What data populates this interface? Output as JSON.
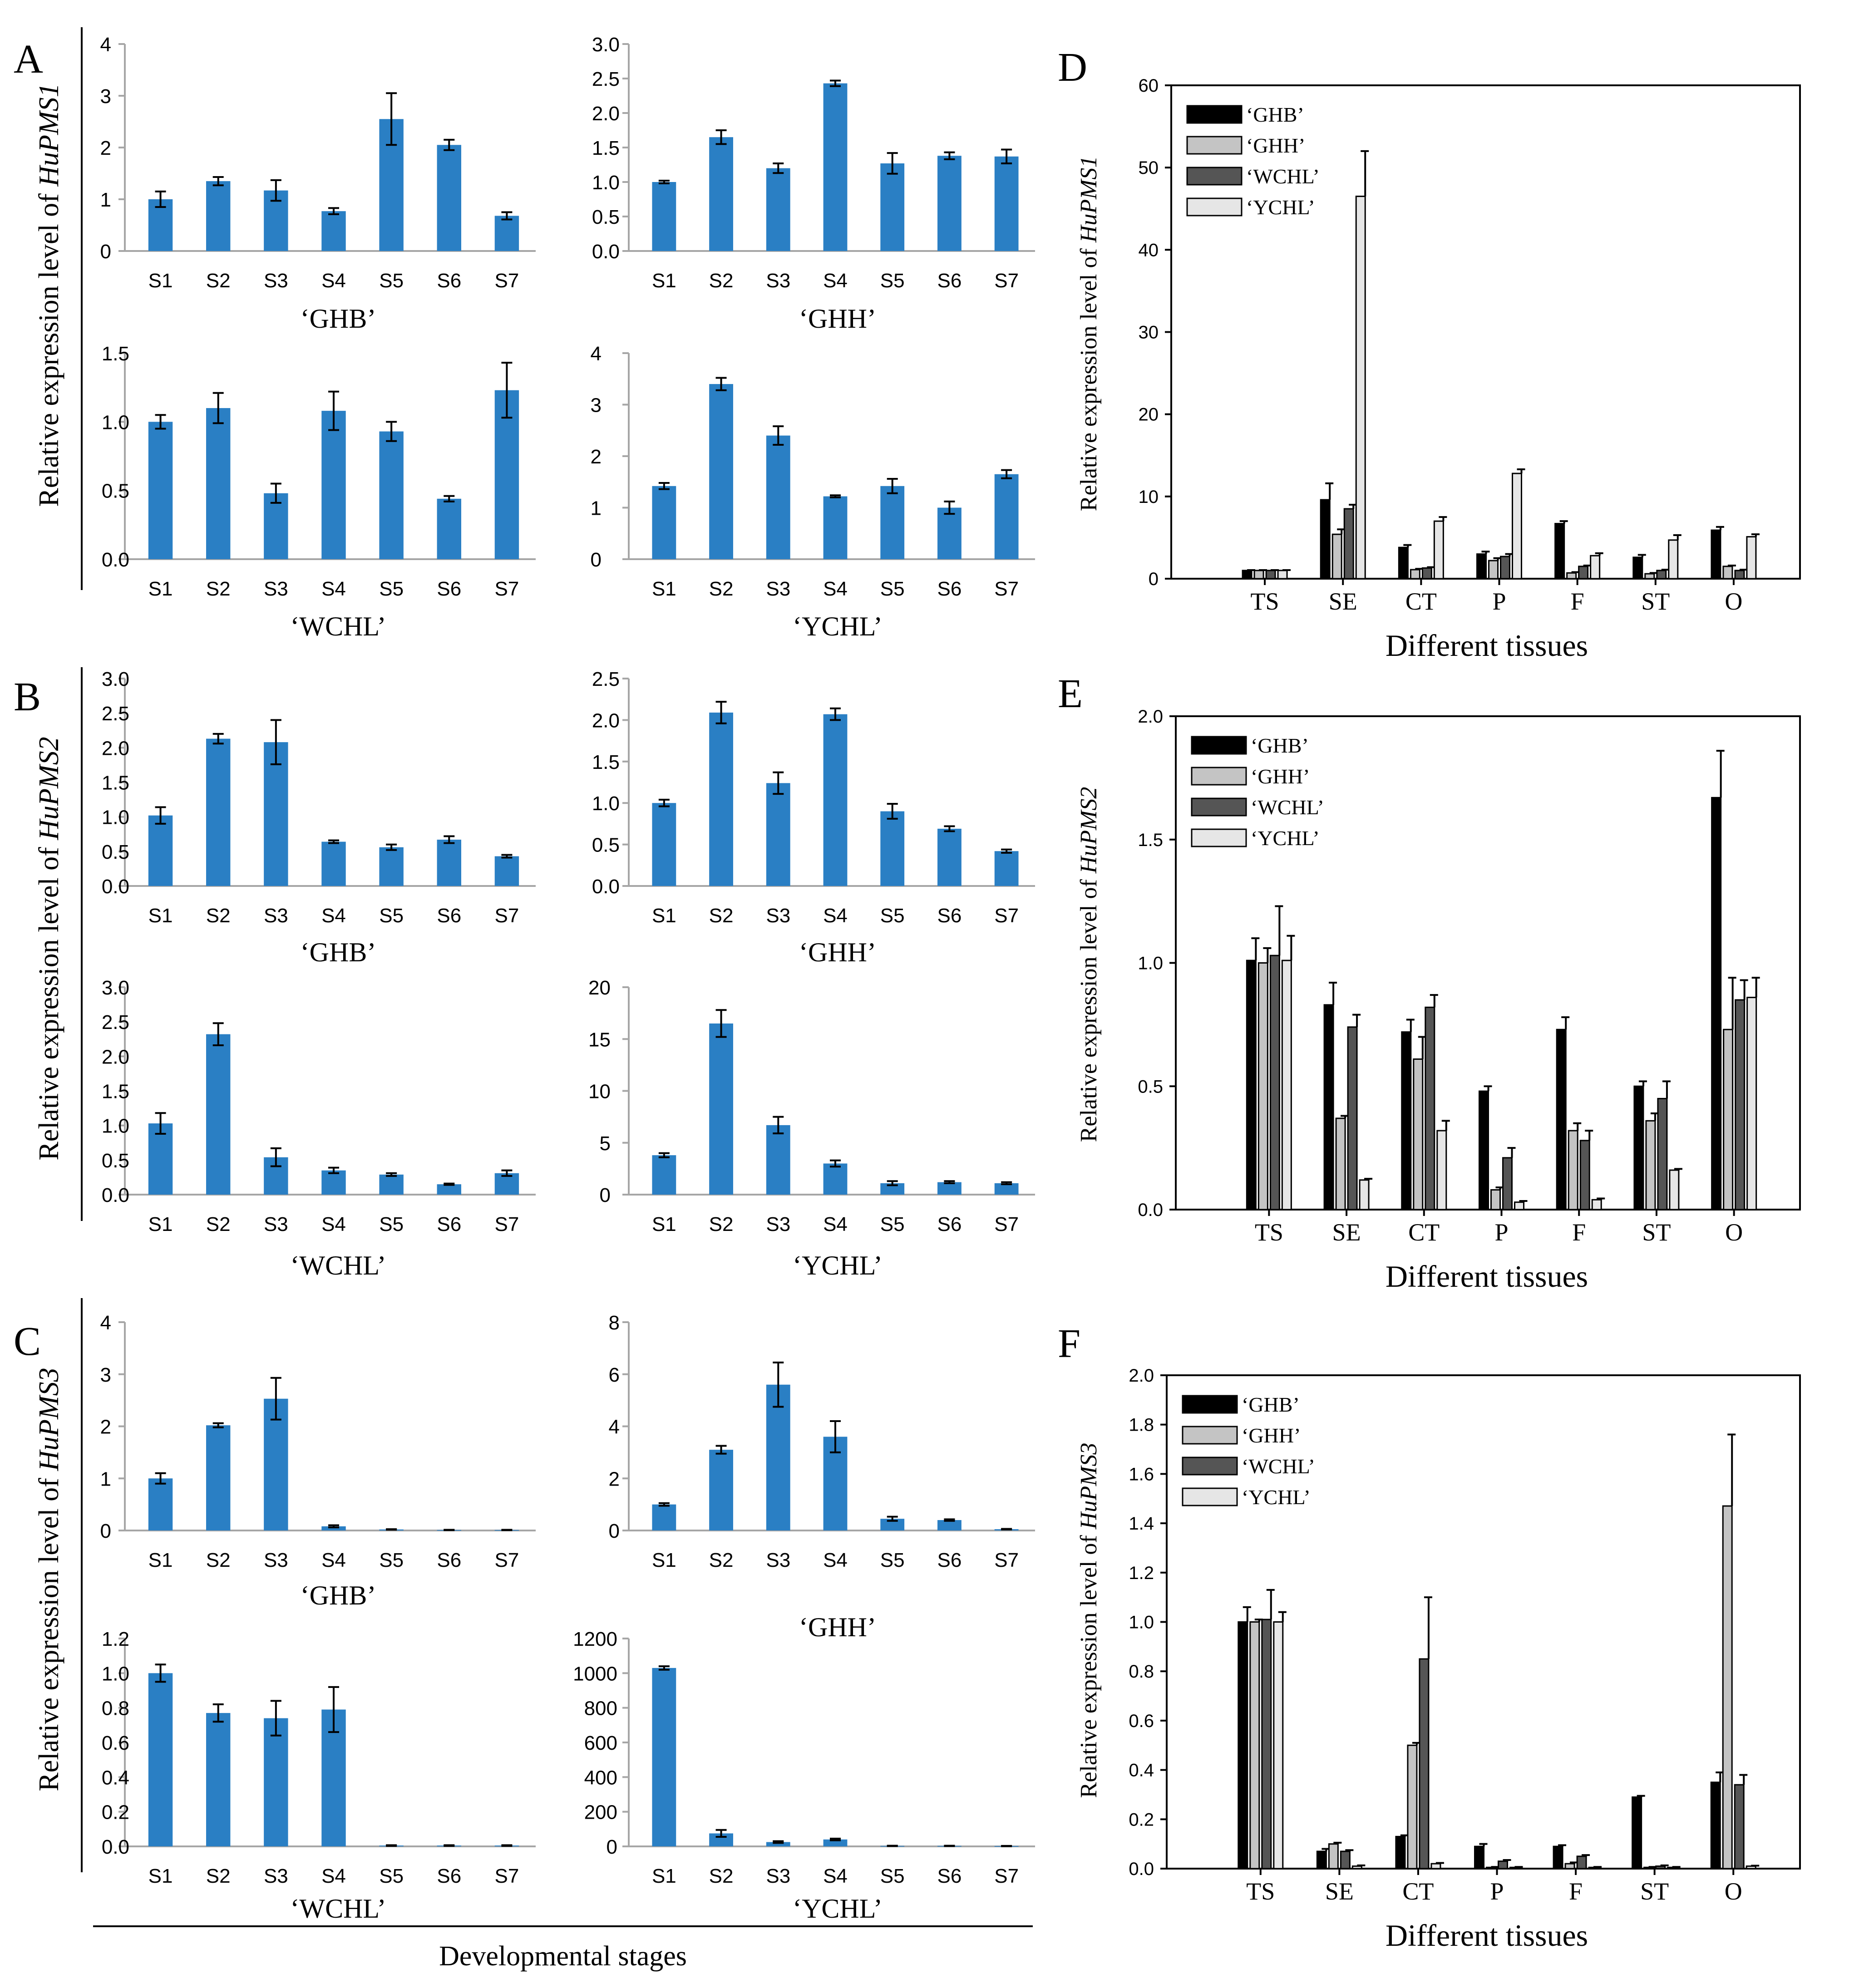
{
  "figure": {
    "xlabel_stages": "Developmental stages",
    "colors": {
      "bar_blue": "#2a7fc4",
      "black": "#000000",
      "ghh_fill": "#c4c4c4",
      "wchl_fill": "#555555",
      "ychl_fill": "#e6e6e6"
    }
  },
  "rows": [
    {
      "letter": "A",
      "ylabel_prefix": "Relative expression level of ",
      "gene": "HuPMS1"
    },
    {
      "letter": "B",
      "ylabel_prefix": "Relative expression level of ",
      "gene": "HuPMS2"
    },
    {
      "letter": "C",
      "ylabel_prefix": "Relative expression level of ",
      "gene": "HuPMS3"
    }
  ],
  "chart_data": [
    {
      "id": "A1",
      "type": "bar",
      "cultivar": "‘GHB’",
      "categories": [
        "S1",
        "S2",
        "S3",
        "S4",
        "S5",
        "S6",
        "S7"
      ],
      "values": [
        1.0,
        1.35,
        1.17,
        0.77,
        2.55,
        2.05,
        0.68
      ],
      "errors": [
        0.15,
        0.08,
        0.2,
        0.06,
        0.5,
        0.1,
        0.07
      ],
      "ylim": [
        0,
        4
      ],
      "yticks": [
        "0",
        "1",
        "2",
        "3",
        "4"
      ]
    },
    {
      "id": "A2",
      "type": "bar",
      "cultivar": "‘GHH’",
      "categories": [
        "S1",
        "S2",
        "S3",
        "S4",
        "S5",
        "S6",
        "S7"
      ],
      "values": [
        1.0,
        1.65,
        1.2,
        2.43,
        1.27,
        1.38,
        1.37
      ],
      "errors": [
        0.02,
        0.1,
        0.07,
        0.04,
        0.15,
        0.05,
        0.1
      ],
      "ylim": [
        0,
        3
      ],
      "yticks": [
        "0.0",
        "0.5",
        "1.0",
        "1.5",
        "2.0",
        "2.5",
        "3.0"
      ]
    },
    {
      "id": "A3",
      "type": "bar",
      "cultivar": "‘WCHL’",
      "categories": [
        "S1",
        "S2",
        "S3",
        "S4",
        "S5",
        "S6",
        "S7"
      ],
      "values": [
        1.0,
        1.1,
        0.48,
        1.08,
        0.93,
        0.44,
        1.23
      ],
      "errors": [
        0.05,
        0.11,
        0.07,
        0.14,
        0.07,
        0.02,
        0.2
      ],
      "ylim": [
        0,
        1.5
      ],
      "yticks": [
        "0.0",
        "0.5",
        "1.0",
        "1.5"
      ]
    },
    {
      "id": "A4",
      "type": "bar",
      "cultivar": "‘YCHL’",
      "categories": [
        "S1",
        "S2",
        "S3",
        "S4",
        "S5",
        "S6",
        "S7"
      ],
      "values": [
        1.42,
        3.4,
        2.4,
        1.22,
        1.42,
        1.0,
        1.65
      ],
      "errors": [
        0.06,
        0.12,
        0.18,
        0.02,
        0.14,
        0.12,
        0.08
      ],
      "ylim": [
        0,
        4
      ],
      "yticks": [
        "0",
        "1",
        "2",
        "3",
        "4"
      ]
    },
    {
      "id": "B1",
      "type": "bar",
      "cultivar": "‘GHB’",
      "categories": [
        "S1",
        "S2",
        "S3",
        "S4",
        "S5",
        "S6",
        "S7"
      ],
      "values": [
        1.02,
        2.13,
        2.08,
        0.64,
        0.56,
        0.67,
        0.43
      ],
      "errors": [
        0.12,
        0.07,
        0.32,
        0.02,
        0.04,
        0.05,
        0.02
      ],
      "ylim": [
        0,
        3
      ],
      "yticks": [
        "0.0",
        "0.5",
        "1.0",
        "1.5",
        "2.0",
        "2.5",
        "3.0"
      ]
    },
    {
      "id": "B2",
      "type": "bar",
      "cultivar": "‘GHH’",
      "categories": [
        "S1",
        "S2",
        "S3",
        "S4",
        "S5",
        "S6",
        "S7"
      ],
      "values": [
        1.0,
        2.09,
        1.24,
        2.07,
        0.9,
        0.69,
        0.42
      ],
      "errors": [
        0.04,
        0.13,
        0.13,
        0.07,
        0.09,
        0.03,
        0.02
      ],
      "ylim": [
        0,
        2.5
      ],
      "yticks": [
        "0.0",
        "0.5",
        "1.0",
        "1.5",
        "2.0",
        "2.5"
      ]
    },
    {
      "id": "B3",
      "type": "bar",
      "cultivar": "‘WCHL’",
      "categories": [
        "S1",
        "S2",
        "S3",
        "S4",
        "S5",
        "S6",
        "S7"
      ],
      "values": [
        1.03,
        2.32,
        0.54,
        0.35,
        0.29,
        0.15,
        0.31
      ],
      "errors": [
        0.15,
        0.16,
        0.13,
        0.04,
        0.02,
        0.01,
        0.04
      ],
      "ylim": [
        0,
        3
      ],
      "yticks": [
        "0.0",
        "0.5",
        "1.0",
        "1.5",
        "2.0",
        "2.5",
        "3.0"
      ]
    },
    {
      "id": "B4",
      "type": "bar",
      "cultivar": "‘YCHL’",
      "categories": [
        "S1",
        "S2",
        "S3",
        "S4",
        "S5",
        "S6",
        "S7"
      ],
      "values": [
        3.8,
        16.5,
        6.7,
        3.0,
        1.1,
        1.2,
        1.1
      ],
      "errors": [
        0.2,
        1.3,
        0.8,
        0.3,
        0.2,
        0.1,
        0.1
      ],
      "ylim": [
        0,
        20
      ],
      "yticks": [
        "0",
        "5",
        "10",
        "15",
        "20"
      ]
    },
    {
      "id": "C1",
      "type": "bar",
      "cultivar": "‘GHB’",
      "categories": [
        "S1",
        "S2",
        "S3",
        "S4",
        "S5",
        "S6",
        "S7"
      ],
      "values": [
        1.0,
        2.02,
        2.53,
        0.08,
        0.02,
        0.01,
        0.01
      ],
      "errors": [
        0.1,
        0.04,
        0.4,
        0.02,
        0.005,
        0.003,
        0.003
      ],
      "ylim": [
        0,
        4
      ],
      "yticks": [
        "0",
        "1",
        "2",
        "3",
        "4"
      ]
    },
    {
      "id": "C2",
      "type": "bar",
      "cultivar": "‘GHH’",
      "categories": [
        "S1",
        "S2",
        "S3",
        "S4",
        "S5",
        "S6",
        "S7"
      ],
      "values": [
        1.0,
        3.1,
        5.6,
        3.6,
        0.45,
        0.4,
        0.05
      ],
      "errors": [
        0.05,
        0.15,
        0.85,
        0.6,
        0.08,
        0.03,
        0.01
      ],
      "ylim": [
        0,
        8
      ],
      "yticks": [
        "0",
        "2",
        "4",
        "6",
        "8"
      ]
    },
    {
      "id": "C3",
      "type": "bar",
      "cultivar": "‘WCHL’",
      "categories": [
        "S1",
        "S2",
        "S3",
        "S4",
        "S5",
        "S6",
        "S7"
      ],
      "values": [
        1.0,
        0.77,
        0.74,
        0.79,
        0.005,
        0.005,
        0.005
      ],
      "errors": [
        0.05,
        0.05,
        0.1,
        0.13,
        0.002,
        0.002,
        0.002
      ],
      "ylim": [
        0,
        1.2
      ],
      "yticks": [
        "0.0",
        "0.2",
        "0.4",
        "0.6",
        "0.8",
        "1.0",
        "1.2"
      ]
    },
    {
      "id": "C4",
      "type": "bar",
      "cultivar": "‘YCHL’",
      "categories": [
        "S1",
        "S2",
        "S3",
        "S4",
        "S5",
        "S6",
        "S7"
      ],
      "values": [
        1030,
        75,
        25,
        40,
        3,
        3,
        2
      ],
      "errors": [
        10,
        20,
        5,
        5,
        1,
        1,
        1
      ],
      "ylim": [
        0,
        1200
      ],
      "yticks": [
        "0",
        "200",
        "400",
        "600",
        "800",
        "1000",
        "1200"
      ]
    },
    {
      "id": "D",
      "letter": "D",
      "type": "bar",
      "title": "",
      "ylabel_prefix": "Relative expression level of ",
      "gene": "HuPMS1",
      "xlabel": "Different tissues",
      "legend_position": "top-left",
      "categories": [
        "TS",
        "SE",
        "CT",
        "P",
        "F",
        "ST",
        "O"
      ],
      "ylim": [
        0,
        60
      ],
      "yticks": [
        "0",
        "10",
        "20",
        "30",
        "40",
        "50",
        "60"
      ],
      "series": [
        {
          "name": "‘GHB’",
          "values": [
            1.0,
            9.6,
            3.8,
            3.0,
            6.7,
            2.6,
            5.9
          ],
          "errors": [
            0.05,
            2.0,
            0.3,
            0.3,
            0.3,
            0.3,
            0.4
          ]
        },
        {
          "name": "‘GHH’",
          "values": [
            1.0,
            5.4,
            1.1,
            2.2,
            0.7,
            0.6,
            1.5
          ],
          "errors": [
            0.05,
            0.6,
            0.1,
            0.3,
            0.1,
            0.1,
            0.1
          ]
        },
        {
          "name": "‘WCHL’",
          "values": [
            1.0,
            8.5,
            1.3,
            2.7,
            1.5,
            1.0,
            1.0
          ],
          "errors": [
            0.05,
            0.5,
            0.1,
            0.3,
            0.1,
            0.1,
            0.1
          ]
        },
        {
          "name": "‘YCHL’",
          "values": [
            1.0,
            46.5,
            7.0,
            12.8,
            2.8,
            4.7,
            5.1
          ],
          "errors": [
            0.05,
            5.5,
            0.5,
            0.5,
            0.3,
            0.6,
            0.3
          ]
        }
      ]
    },
    {
      "id": "E",
      "letter": "E",
      "type": "bar",
      "title": "",
      "ylabel_prefix": "Relative expression level of ",
      "gene": "HuPMS2",
      "xlabel": "Different tissues",
      "legend_position": "top-left",
      "categories": [
        "TS",
        "SE",
        "CT",
        "P",
        "F",
        "ST",
        "O"
      ],
      "ylim": [
        0,
        2.0
      ],
      "yticks": [
        "0.0",
        "0.5",
        "1.0",
        "1.5",
        "2.0"
      ],
      "series": [
        {
          "name": "‘GHB’",
          "values": [
            1.01,
            0.83,
            0.72,
            0.48,
            0.73,
            0.5,
            1.67
          ],
          "errors": [
            0.09,
            0.09,
            0.05,
            0.02,
            0.05,
            0.02,
            0.19
          ]
        },
        {
          "name": "‘GHH’",
          "values": [
            1.0,
            0.37,
            0.61,
            0.08,
            0.32,
            0.36,
            0.73
          ],
          "errors": [
            0.06,
            0.01,
            0.09,
            0.01,
            0.03,
            0.03,
            0.21
          ]
        },
        {
          "name": "‘WCHL’",
          "values": [
            1.03,
            0.74,
            0.82,
            0.21,
            0.28,
            0.45,
            0.85
          ],
          "errors": [
            0.2,
            0.05,
            0.05,
            0.04,
            0.04,
            0.07,
            0.08
          ]
        },
        {
          "name": "‘YCHL’",
          "values": [
            1.01,
            0.12,
            0.32,
            0.03,
            0.04,
            0.16,
            0.86
          ],
          "errors": [
            0.1,
            0.005,
            0.04,
            0.005,
            0.005,
            0.005,
            0.08
          ]
        }
      ]
    },
    {
      "id": "F",
      "letter": "F",
      "type": "bar",
      "title": "",
      "ylabel_prefix": "Relative expression level of ",
      "gene": "HuPMS3",
      "xlabel": "Different tissues",
      "legend_position": "top-left",
      "categories": [
        "TS",
        "SE",
        "CT",
        "P",
        "F",
        "ST",
        "O"
      ],
      "ylim": [
        0,
        2.0
      ],
      "yticks": [
        "0.0",
        "0.2",
        "0.4",
        "0.6",
        "0.8",
        "1.0",
        "1.2",
        "1.4",
        "1.6",
        "1.8",
        "2.0"
      ],
      "series": [
        {
          "name": "‘GHB’",
          "values": [
            1.0,
            0.07,
            0.13,
            0.09,
            0.09,
            0.29,
            0.35
          ],
          "errors": [
            0.06,
            0.01,
            0.005,
            0.01,
            0.005,
            0.005,
            0.04
          ]
        },
        {
          "name": "‘GHH’",
          "values": [
            1.0,
            0.1,
            0.5,
            0.005,
            0.02,
            0.005,
            1.47
          ],
          "errors": [
            0.01,
            0.005,
            0.01,
            0.002,
            0.005,
            0.002,
            0.29
          ]
        },
        {
          "name": "‘WCHL’",
          "values": [
            1.01,
            0.07,
            0.85,
            0.03,
            0.05,
            0.01,
            0.34
          ],
          "errors": [
            0.12,
            0.005,
            0.25,
            0.005,
            0.005,
            0.003,
            0.04
          ]
        },
        {
          "name": "‘YCHL’",
          "values": [
            1.0,
            0.01,
            0.02,
            0.005,
            0.005,
            0.005,
            0.01
          ],
          "errors": [
            0.04,
            0.003,
            0.003,
            0.002,
            0.002,
            0.002,
            0.002
          ]
        }
      ]
    }
  ]
}
